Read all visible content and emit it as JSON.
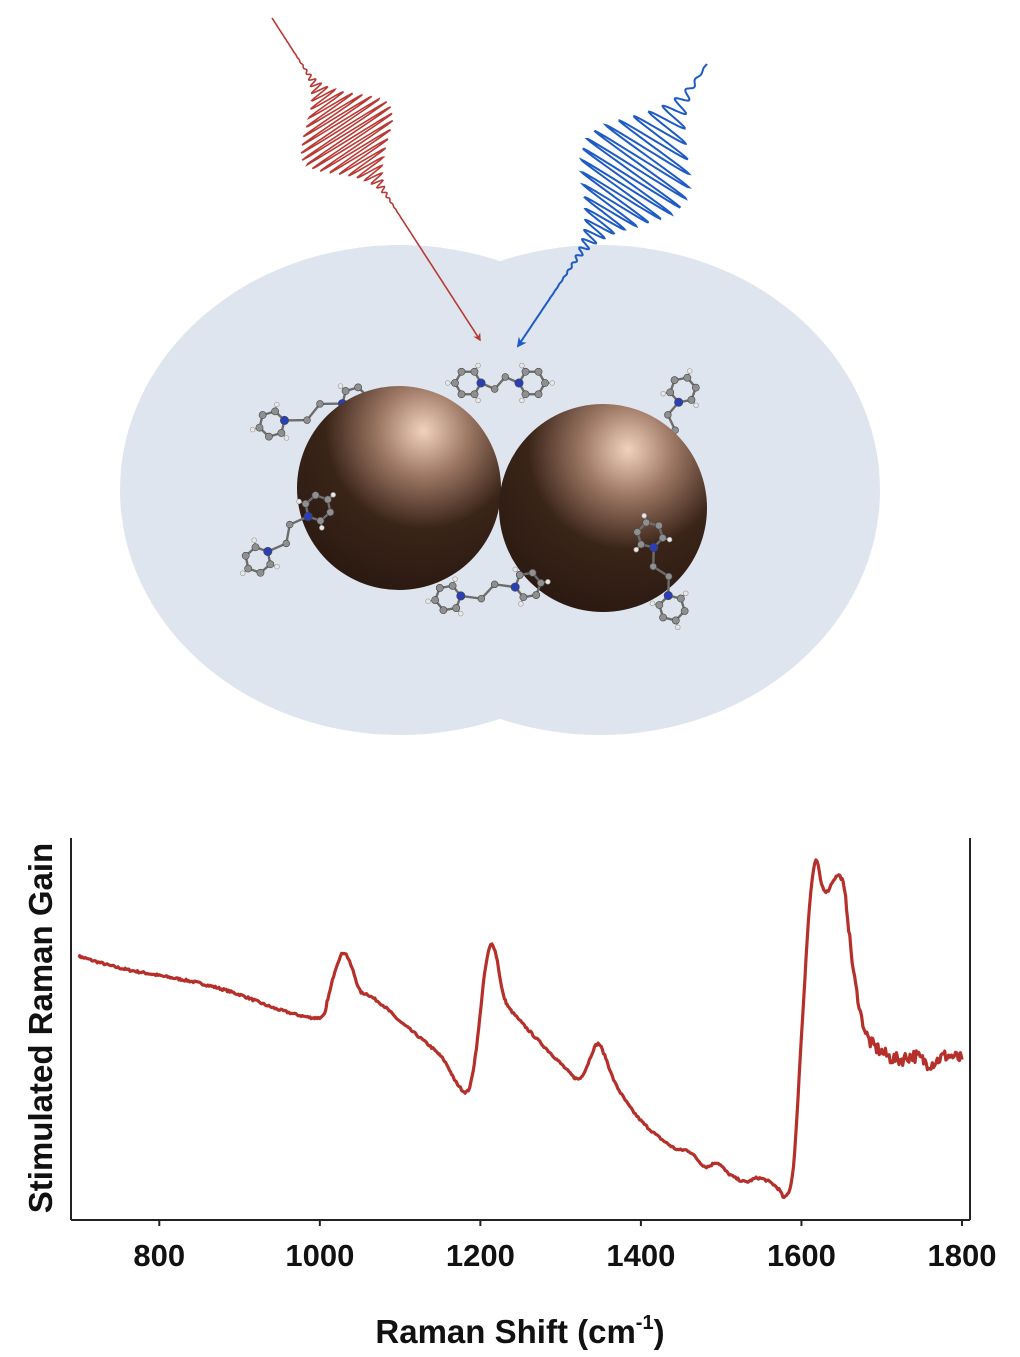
{
  "illustration": {
    "pump_pulse_color": "#b83a34",
    "stokes_pulse_color": "#1f5bc4",
    "medium_color": "#dfe5ee",
    "particle_color": "#2b1a12",
    "particle_highlight": "#f2d2bd",
    "nitrogen_color": "#2a3fb5",
    "carbon_color": "#8f8f8f",
    "hydrogen_color": "#e8e8e8"
  },
  "chart_data": {
    "type": "line",
    "xlabel": "Raman Shift (cm",
    "xlabel_sup": "-1",
    "xlabel_suffix": ")",
    "ylabel": "Stimulated Raman Gain",
    "xlim": [
      690,
      1810
    ],
    "ylim": [
      0,
      1
    ],
    "x_ticks": [
      800,
      1000,
      1200,
      1400,
      1600,
      1800
    ],
    "x_tick_labels": [
      "800",
      "1000",
      "1200",
      "1400",
      "1600",
      "1800"
    ],
    "y_ticks": [],
    "grid": false,
    "series": [
      {
        "color": "#b5302a",
        "x": [
          700,
          750,
          800,
          850,
          900,
          950,
          1000,
          1010,
          1020,
          1030,
          1040,
          1050,
          1060,
          1080,
          1100,
          1150,
          1170,
          1185,
          1195,
          1205,
          1213,
          1220,
          1230,
          1250,
          1300,
          1320,
          1330,
          1345,
          1355,
          1370,
          1400,
          1440,
          1460,
          1480,
          1495,
          1510,
          1530,
          1545,
          1560,
          1572,
          1580,
          1590,
          1600,
          1610,
          1618,
          1625,
          1632,
          1640,
          1648,
          1655,
          1665,
          1680,
          1700,
          1720,
          1740,
          1760,
          1780,
          1800
        ],
        "y": [
          0.69,
          0.66,
          0.64,
          0.62,
          0.59,
          0.55,
          0.53,
          0.58,
          0.66,
          0.7,
          0.66,
          0.6,
          0.59,
          0.56,
          0.52,
          0.43,
          0.36,
          0.34,
          0.45,
          0.64,
          0.72,
          0.69,
          0.58,
          0.52,
          0.41,
          0.37,
          0.39,
          0.46,
          0.43,
          0.35,
          0.26,
          0.19,
          0.18,
          0.14,
          0.15,
          0.12,
          0.1,
          0.11,
          0.1,
          0.08,
          0.06,
          0.14,
          0.48,
          0.82,
          0.94,
          0.88,
          0.86,
          0.89,
          0.9,
          0.84,
          0.65,
          0.49,
          0.44,
          0.42,
          0.43,
          0.41,
          0.43,
          0.42
        ]
      }
    ]
  }
}
